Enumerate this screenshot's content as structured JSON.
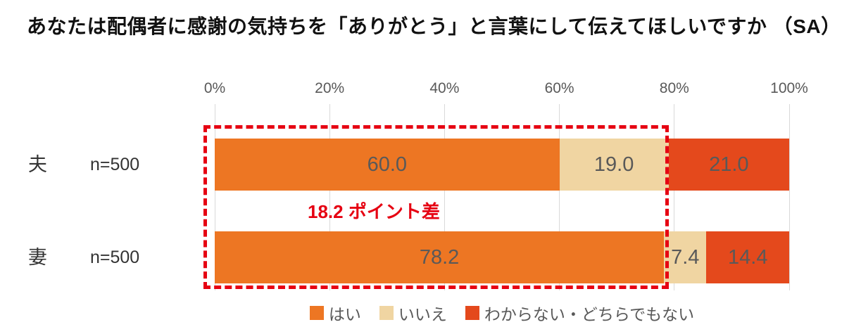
{
  "title": "あなたは配偶者に感謝の気持ちを「ありがとう」と言葉にして伝えてほしいですか （SA）",
  "chart_data": {
    "type": "bar",
    "orientation": "horizontal-stacked",
    "categories": [
      "夫",
      "妻"
    ],
    "category_n": [
      "n=500",
      "n=500"
    ],
    "series": [
      {
        "name": "はい",
        "color": "#ED7623",
        "values": [
          60.0,
          78.2
        ]
      },
      {
        "name": "いいえ",
        "color": "#F0D5A2",
        "values": [
          19.0,
          7.4
        ]
      },
      {
        "name": "わからない・どちらでもない",
        "color": "#E4491C",
        "values": [
          21.0,
          14.4
        ]
      }
    ],
    "x_ticks": [
      "0%",
      "20%",
      "40%",
      "60%",
      "80%",
      "100%"
    ],
    "xlim": [
      0,
      100
    ],
    "grid": true,
    "legend_position": "bottom",
    "value_label_color": "#595959",
    "annotation": {
      "label": "18.2 ポイント差",
      "color": "#E60012",
      "box_from_percent": -2,
      "box_to_percent": 79
    }
  }
}
